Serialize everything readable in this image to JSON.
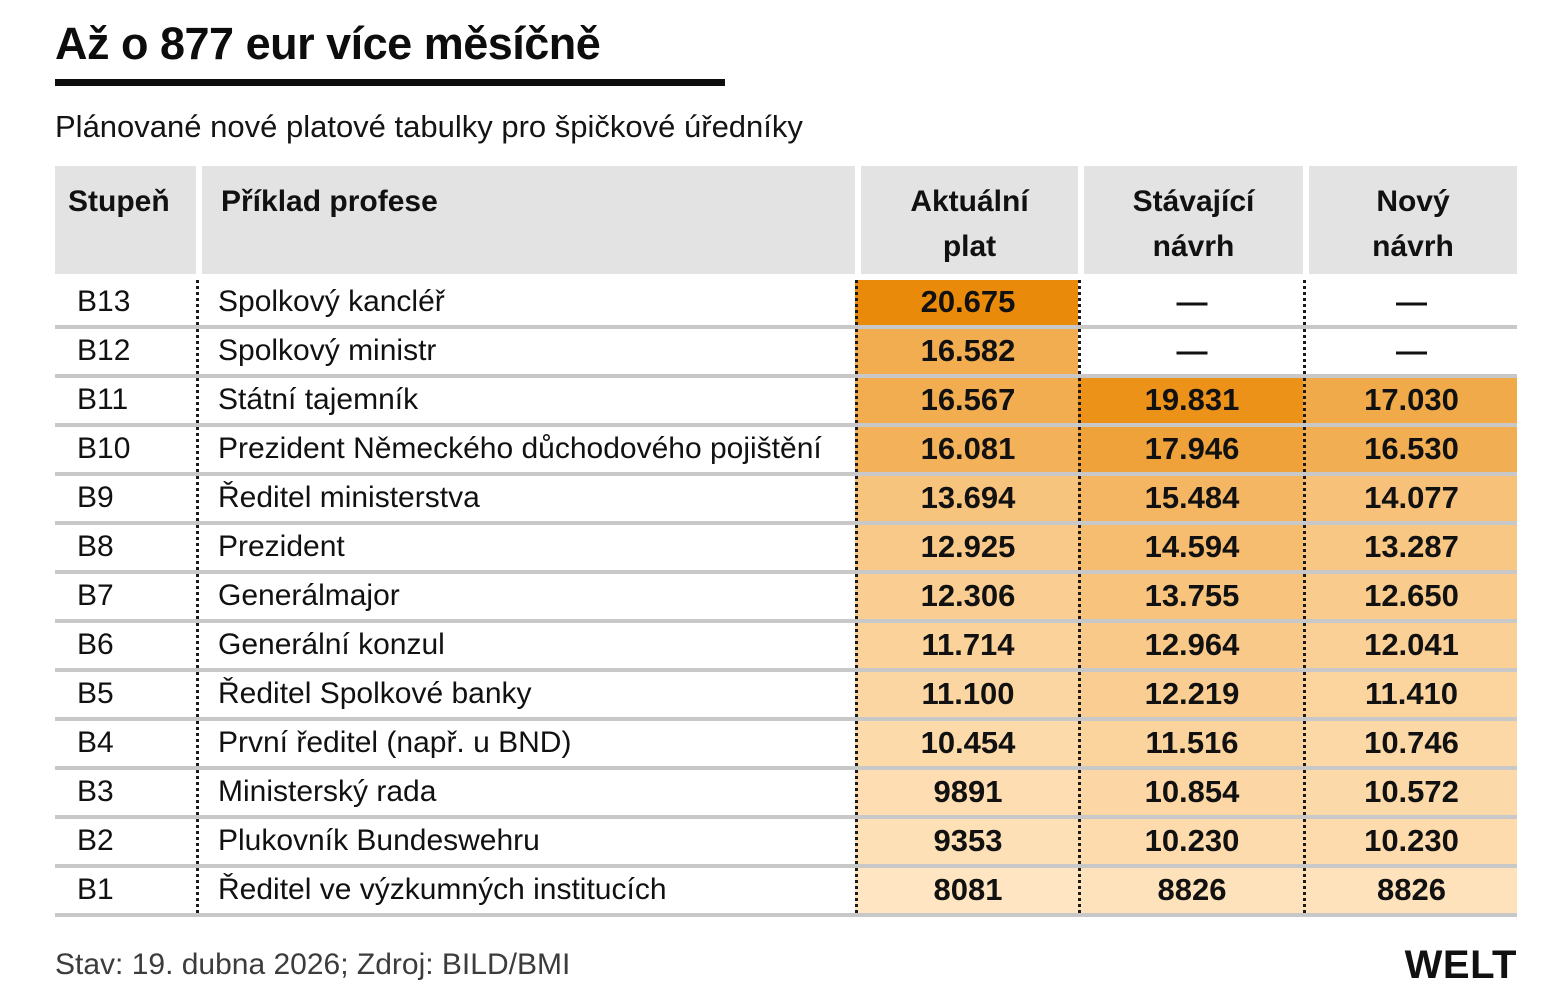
{
  "header": {
    "title": "Až o 877 eur více měsíčně",
    "subtitle": "Plánované nové platové tabulky pro špičkové úředníky"
  },
  "chart_data": {
    "type": "table",
    "title": "Až o 877 eur více měsíčně",
    "subtitle": "Plánované nové platové tabulky pro špičkové úředníky",
    "columns": [
      "Stupeň",
      "Příklad profese",
      "Aktuální\nplat",
      "Stávající\nnávrh",
      "Nový\nnávrh"
    ],
    "rows": [
      [
        "B13",
        "Spolkový kancléř",
        "20.675",
        "—",
        "—"
      ],
      [
        "B12",
        "Spolkový ministr",
        "16.582",
        "—",
        "—"
      ],
      [
        "B11",
        "Státní tajemník",
        "16.567",
        "19.831",
        "17.030"
      ],
      [
        "B10",
        "Prezident Německého důchodového pojištění",
        "16.081",
        "17.946",
        "16.530"
      ],
      [
        "B9",
        "Ředitel ministerstva",
        "13.694",
        "15.484",
        "14.077"
      ],
      [
        "B8",
        "Prezident",
        "12.925",
        "14.594",
        "13.287"
      ],
      [
        "B7",
        "Generálmajor",
        "12.306",
        "13.755",
        "12.650"
      ],
      [
        "B6",
        "Generální konzul",
        "11.714",
        "12.964",
        "12.041"
      ],
      [
        "B5",
        "Ředitel Spolkové banky",
        "11.100",
        "12.219",
        "11.410"
      ],
      [
        "B4",
        "První ředitel (např. u BND)",
        "10.454",
        "11.516",
        "10.746"
      ],
      [
        "B3",
        "Ministerský rada",
        "9891",
        "10.854",
        "10.572"
      ],
      [
        "B2",
        "Plukovník Bundeswehru",
        "9353",
        "10.230",
        "10.230"
      ],
      [
        "B1",
        "Ředitel ve výzkumných institucích",
        "8081",
        "8826",
        "8826"
      ]
    ],
    "color_scale": {
      "min_value": 8081,
      "max_value": 20675,
      "min_color": "#FFE5C1",
      "max_color": "#EA8A0A",
      "empty_color": "#FFFFFF"
    },
    "layout": {
      "header_bg": "#E3E3E3",
      "row_divider": "#C8C8C8",
      "dotted_line": "#1A1A1A",
      "grid": "off",
      "legend": "none"
    }
  },
  "footer": {
    "source": "Stav: 19. dubna 2026; Zdroj: BILD/BMI",
    "brand": "WELT"
  }
}
